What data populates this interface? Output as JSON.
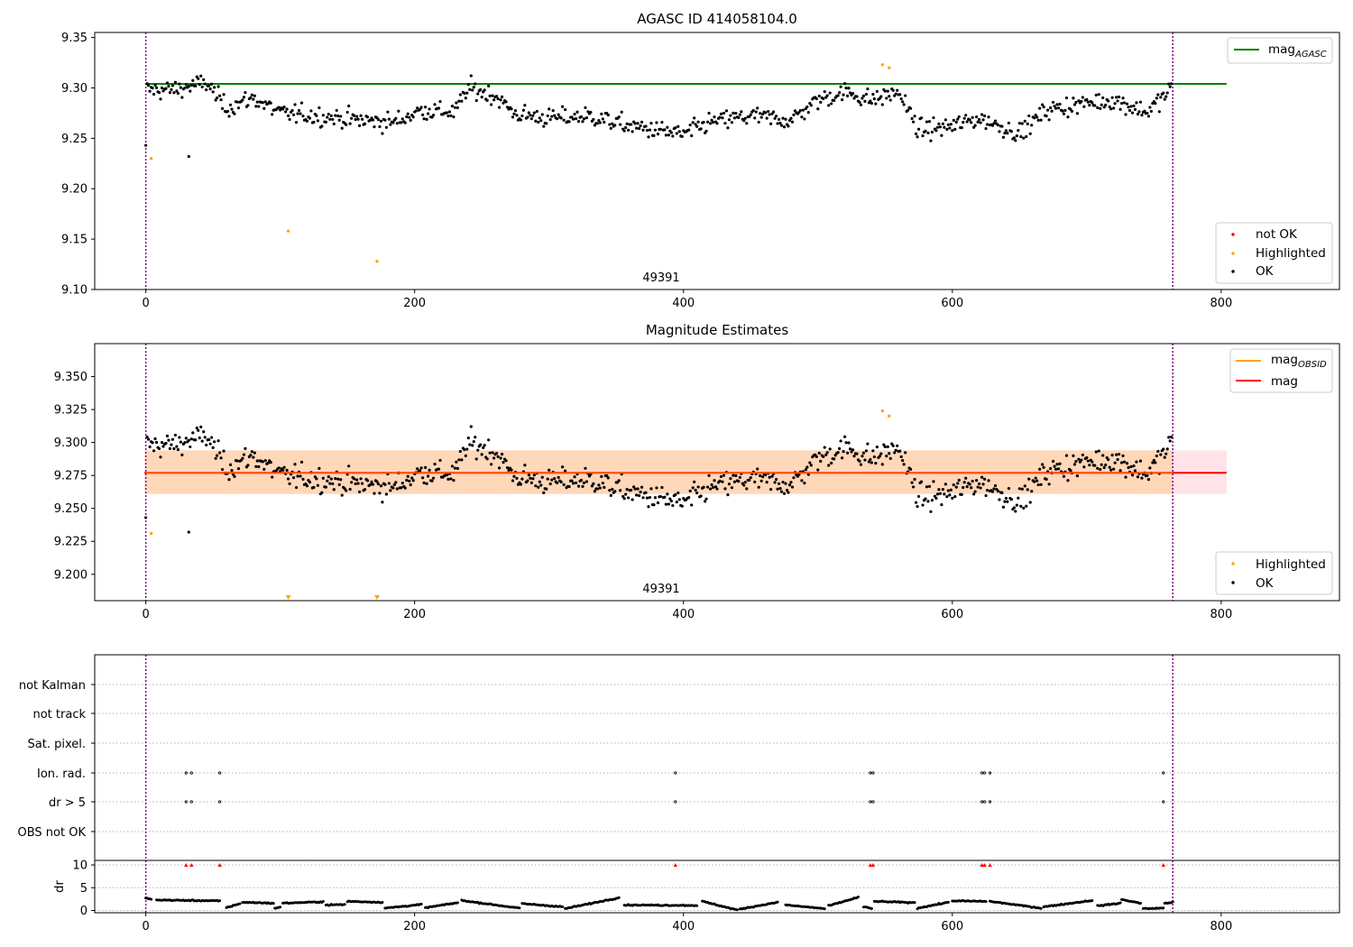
{
  "figure": {
    "panel1_title": "AGASC ID 414058104.0",
    "panel2_title": "Magnitude Estimates",
    "obsid_label": "49391",
    "x_ticks": [
      0,
      200,
      400,
      600,
      800
    ],
    "colors": {
      "ok": "#000000",
      "highlighted": "#ffa500",
      "not_ok": "#ff0000",
      "mag_agasc": "#008000",
      "mag_obsid": "#ffa500",
      "mag": "#ff0000",
      "obs_boundary": "#800080",
      "band_outer": "#ffc0cb",
      "band_inner": "#ffd5b0",
      "dr_flag": "#ff0000"
    }
  },
  "legends": {
    "panel1_line": {
      "base": "mag",
      "sub": "AGASC"
    },
    "panel1_points": [
      "not OK",
      "Highlighted",
      "OK"
    ],
    "panel2_lines": [
      {
        "base": "mag",
        "sub": "OBSID"
      },
      {
        "base": "mag",
        "sub": ""
      }
    ],
    "panel2_points": [
      "Highlighted",
      "OK"
    ]
  },
  "flags_panel": {
    "categories": [
      "not Kalman",
      "not track",
      "Sat. pixel.",
      "Ion. rad.",
      "dr > 5",
      "OBS not OK"
    ],
    "flag_x": [
      30,
      34,
      55,
      394,
      539,
      541,
      622,
      624,
      628,
      757
    ]
  },
  "chart_data": [
    {
      "type": "scatter",
      "title": "AGASC ID 414058104.0",
      "xlim": [
        -38,
        888
      ],
      "ylim": [
        9.1,
        9.355
      ],
      "y_ticks": [
        9.1,
        9.15,
        9.2,
        9.25,
        9.3,
        9.35
      ],
      "mag_agasc": 9.304,
      "obs_boundaries": [
        0,
        764
      ],
      "n_points": 764,
      "trend_x": [
        0,
        20,
        45,
        60,
        80,
        100,
        130,
        160,
        185,
        205,
        230,
        240,
        260,
        275,
        300,
        330,
        360,
        400,
        420,
        450,
        480,
        500,
        520,
        540,
        560,
        575,
        600,
        620,
        650,
        670,
        700,
        720,
        745,
        764
      ],
      "trend_y": [
        9.298,
        9.298,
        9.305,
        9.28,
        9.29,
        9.275,
        9.272,
        9.268,
        9.266,
        9.278,
        9.276,
        9.3,
        9.292,
        9.274,
        9.27,
        9.272,
        9.262,
        9.254,
        9.266,
        9.272,
        9.268,
        9.288,
        9.296,
        9.288,
        9.296,
        9.258,
        9.262,
        9.27,
        9.255,
        9.278,
        9.285,
        9.288,
        9.276,
        9.3
      ],
      "noise": 0.012,
      "outliers": [
        {
          "x": 0,
          "y": 9.243
        },
        {
          "x": 32,
          "y": 9.232
        }
      ],
      "highlighted": [
        {
          "x": 4,
          "y": 9.23
        },
        {
          "x": 106,
          "y": 9.158
        },
        {
          "x": 172,
          "y": 9.128
        },
        {
          "x": 548,
          "y": 9.323
        },
        {
          "x": 553,
          "y": 9.32
        }
      ]
    },
    {
      "type": "scatter",
      "title": "Magnitude Estimates",
      "xlim": [
        -38,
        888
      ],
      "ylim": [
        9.18,
        9.375
      ],
      "y_ticks": [
        9.2,
        9.225,
        9.25,
        9.275,
        9.3,
        9.325,
        9.35
      ],
      "mag": 9.277,
      "band_outer": [
        9.261,
        9.294
      ],
      "band_inner": [
        9.261,
        9.294
      ],
      "band_inner_x": [
        0,
        764
      ],
      "band_outer_x": [
        -1,
        804
      ],
      "highlighted": [
        {
          "x": 4,
          "y": 9.231
        },
        {
          "x": 548,
          "y": 9.324
        },
        {
          "x": 553,
          "y": 9.32
        }
      ],
      "below_axis_markers_x": [
        106,
        172
      ]
    },
    {
      "type": "line",
      "ylabel": "dr",
      "ylim": [
        -0.5,
        11
      ],
      "y_ticks": [
        0,
        5,
        10
      ],
      "segments": [
        {
          "x0": 0,
          "x1": 4,
          "y0": 2.8,
          "y1": 2.4
        },
        {
          "x0": 8,
          "x1": 55,
          "y0": 2.3,
          "y1": 2.1
        },
        {
          "x0": 60,
          "x1": 70,
          "y0": 0.6,
          "y1": 1.5
        },
        {
          "x0": 72,
          "x1": 95,
          "y0": 1.8,
          "y1": 1.6
        },
        {
          "x0": 96,
          "x1": 100,
          "y0": 0.4,
          "y1": 0.8
        },
        {
          "x0": 102,
          "x1": 132,
          "y0": 1.6,
          "y1": 1.9
        },
        {
          "x0": 134,
          "x1": 148,
          "y0": 1.2,
          "y1": 1.3
        },
        {
          "x0": 150,
          "x1": 176,
          "y0": 2.0,
          "y1": 1.8
        },
        {
          "x0": 178,
          "x1": 205,
          "y0": 0.5,
          "y1": 1.3
        },
        {
          "x0": 208,
          "x1": 232,
          "y0": 0.6,
          "y1": 1.7
        },
        {
          "x0": 235,
          "x1": 278,
          "y0": 2.2,
          "y1": 0.5
        },
        {
          "x0": 280,
          "x1": 310,
          "y0": 1.5,
          "y1": 0.8
        },
        {
          "x0": 312,
          "x1": 352,
          "y0": 0.4,
          "y1": 2.8
        },
        {
          "x0": 356,
          "x1": 410,
          "y0": 1.2,
          "y1": 1.1
        },
        {
          "x0": 414,
          "x1": 440,
          "y0": 2.0,
          "y1": 0.1
        },
        {
          "x0": 442,
          "x1": 470,
          "y0": 0.3,
          "y1": 1.8
        },
        {
          "x0": 476,
          "x1": 505,
          "y0": 1.2,
          "y1": 0.4
        },
        {
          "x0": 508,
          "x1": 530,
          "y0": 1.0,
          "y1": 2.9
        },
        {
          "x0": 534,
          "x1": 540,
          "y0": 0.8,
          "y1": 0.4
        },
        {
          "x0": 542,
          "x1": 572,
          "y0": 2.0,
          "y1": 1.7
        },
        {
          "x0": 574,
          "x1": 597,
          "y0": 0.5,
          "y1": 1.8
        },
        {
          "x0": 600,
          "x1": 625,
          "y0": 2.1,
          "y1": 2.0
        },
        {
          "x0": 628,
          "x1": 666,
          "y0": 2.0,
          "y1": 0.5
        },
        {
          "x0": 668,
          "x1": 704,
          "y0": 0.8,
          "y1": 2.2
        },
        {
          "x0": 708,
          "x1": 725,
          "y0": 1.0,
          "y1": 1.6
        },
        {
          "x0": 726,
          "x1": 740,
          "y0": 2.4,
          "y1": 1.6
        },
        {
          "x0": 742,
          "x1": 757,
          "y0": 0.4,
          "y1": 0.5
        },
        {
          "x0": 758,
          "x1": 764,
          "y0": 1.6,
          "y1": 1.8
        }
      ],
      "flag_markers_x": [
        30,
        34,
        55,
        394,
        539,
        541,
        622,
        624,
        628,
        757
      ],
      "flag_marker_y": 10
    }
  ]
}
